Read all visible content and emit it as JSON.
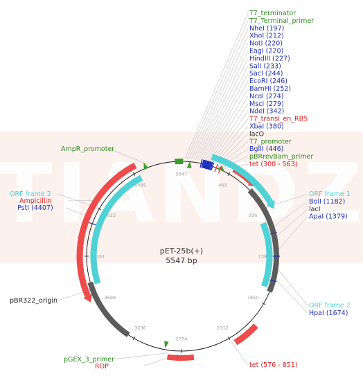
{
  "map": {
    "name": "pET-25b(+)",
    "size_label": "5547 bp",
    "watermark": "TIANDZ",
    "colors": {
      "backbone": "#222222",
      "tick_text": "#9a9a9a",
      "feature_red": "#ee4b4b",
      "feature_cyan": "#4fd2d6",
      "feature_gray": "#5c5c5c",
      "feature_green": "#3a9c2e",
      "site_blue": "#1f2fb8",
      "label_blue": "#1f2fb8",
      "label_red": "#e02020",
      "label_green": "#2f8a1f",
      "label_black": "#222222",
      "watermark_bg": "#fdf1ee"
    },
    "ticks": [
      "5547",
      "463",
      "926",
      "1388",
      "1850",
      "2312",
      "2774",
      "3236",
      "3698",
      "4161",
      "4623",
      "5085"
    ],
    "labels_top": [
      {
        "text": "T7_terminator",
        "color": "green"
      },
      {
        "text": "T7_Terminal_primer",
        "color": "green"
      },
      {
        "text": "NheI (197)",
        "color": "blue"
      },
      {
        "text": "XhoI (212)",
        "color": "blue"
      },
      {
        "text": "NotI (220)",
        "color": "blue"
      },
      {
        "text": "EagI (220)",
        "color": "blue"
      },
      {
        "text": "HindIII (227)",
        "color": "blue"
      },
      {
        "text": "SalI (233)",
        "color": "blue"
      },
      {
        "text": "SacI (244)",
        "color": "blue"
      },
      {
        "text": "EcoRI (246)",
        "color": "blue"
      },
      {
        "text": "BamHI (252)",
        "color": "blue"
      },
      {
        "text": "NcoI (274)",
        "color": "blue"
      },
      {
        "text": "MscI (279)",
        "color": "blue"
      },
      {
        "text": "NdeI (342)",
        "color": "blue"
      },
      {
        "text": "T7_transl_en_RBS",
        "color": "red"
      },
      {
        "text": "XbaI (380)",
        "color": "blue"
      },
      {
        "text": "lacO",
        "color": "black"
      },
      {
        "text": "T7_promoter",
        "color": "green"
      },
      {
        "text": "BglII (446)",
        "color": "blue"
      },
      {
        "text": "pBRrevBam_primer",
        "color": "green"
      },
      {
        "text": "tet (300 - 563)",
        "color": "red"
      }
    ],
    "labels_right": [
      {
        "text": "ORF frame 1",
        "color": "cyan"
      },
      {
        "text": "BolI (1182)",
        "color": "blue"
      },
      {
        "text": "lacI",
        "color": "black"
      },
      {
        "text": "ApaI (1379)",
        "color": "blue"
      }
    ],
    "labels_right_lower": [
      {
        "text": "ORF frame 2",
        "color": "cyan"
      },
      {
        "text": "HpaI (1674)",
        "color": "blue"
      }
    ],
    "labels_bottom_right": [
      {
        "text": "tet (576 - 851)",
        "color": "red"
      }
    ],
    "labels_left": [
      {
        "text": "AmpR_promoter",
        "color": "green"
      },
      {
        "text": "ORF frame 2",
        "color": "cyan"
      },
      {
        "text": "Ampicillin",
        "color": "red"
      },
      {
        "text": "PstI (4407)",
        "color": "blue"
      },
      {
        "text": "pBR322_origin",
        "color": "black"
      },
      {
        "text": "pGEX_3_primer",
        "color": "green"
      },
      {
        "text": "ROP",
        "color": "red"
      }
    ]
  }
}
